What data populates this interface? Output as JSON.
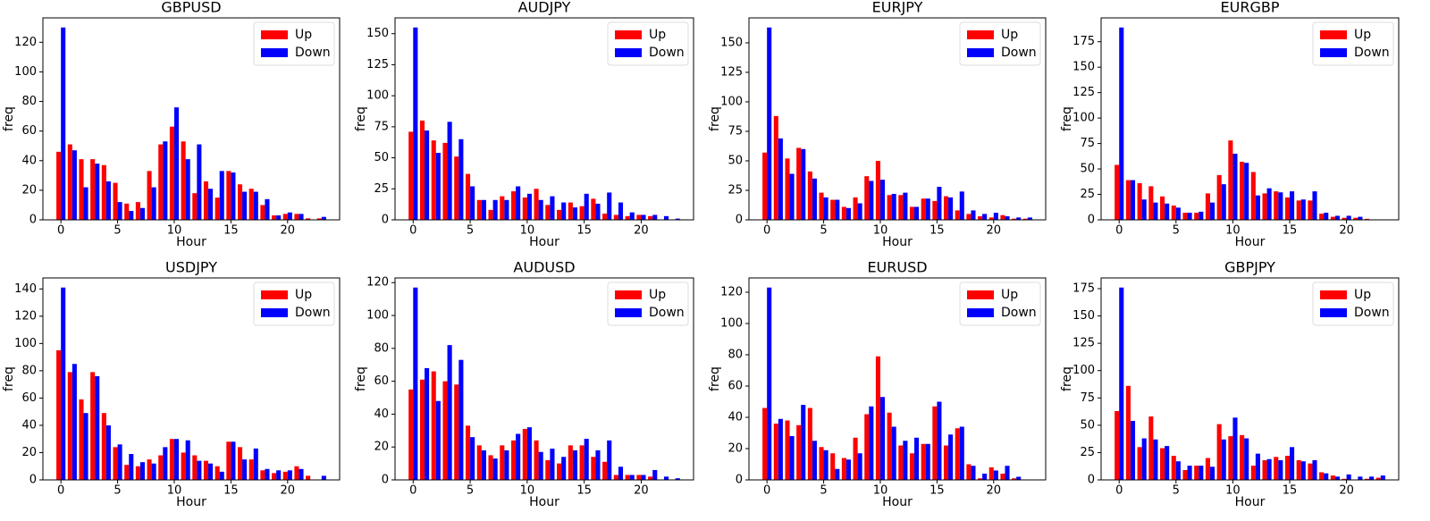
{
  "chart_data": [
    {
      "type": "bar",
      "title": "GBPUSD",
      "xlabel": "Hour",
      "ylabel": "freq",
      "x": [
        0,
        1,
        2,
        3,
        4,
        5,
        6,
        7,
        8,
        9,
        10,
        11,
        12,
        13,
        14,
        15,
        16,
        17,
        18,
        19,
        20,
        21,
        22,
        23
      ],
      "series": [
        {
          "name": "Up",
          "color": "#ff0000",
          "values": [
            46,
            51,
            41,
            41,
            37,
            25,
            11,
            12,
            33,
            51,
            63,
            53,
            18,
            26,
            15,
            33,
            24,
            21,
            10,
            3,
            4,
            4,
            1,
            1
          ]
        },
        {
          "name": "Down",
          "color": "#0000ff",
          "values": [
            130,
            47,
            22,
            38,
            26,
            12,
            6,
            8,
            22,
            53,
            76,
            41,
            51,
            21,
            33,
            32,
            19,
            19,
            14,
            3,
            5,
            4,
            0,
            2
          ]
        }
      ],
      "xlim": [
        -1.59,
        24.59
      ],
      "xticks": [
        0,
        5,
        10,
        15,
        20
      ],
      "ylim": [
        0,
        136.5
      ],
      "yticks": [
        0,
        20,
        40,
        60,
        80,
        100,
        120
      ],
      "legend": "upper right"
    },
    {
      "type": "bar",
      "title": "AUDJPY",
      "xlabel": "Hour",
      "ylabel": "freq",
      "x": [
        0,
        1,
        2,
        3,
        4,
        5,
        6,
        7,
        8,
        9,
        10,
        11,
        12,
        13,
        14,
        15,
        16,
        17,
        18,
        19,
        20,
        21,
        22,
        23
      ],
      "series": [
        {
          "name": "Up",
          "color": "#ff0000",
          "values": [
            71,
            80,
            64,
            62,
            51,
            37,
            16,
            8,
            19,
            23,
            18,
            25,
            12,
            8,
            14,
            11,
            17,
            5,
            4,
            3,
            4,
            3,
            0,
            0
          ]
        },
        {
          "name": "Down",
          "color": "#0000ff",
          "values": [
            155,
            72,
            54,
            79,
            65,
            27,
            16,
            16,
            16,
            27,
            21,
            16,
            19,
            14,
            10,
            21,
            13,
            22,
            14,
            6,
            4,
            4,
            3,
            1
          ]
        }
      ],
      "xlim": [
        -1.59,
        24.59
      ],
      "xticks": [
        0,
        5,
        10,
        15,
        20
      ],
      "ylim": [
        0,
        162.75
      ],
      "yticks": [
        0,
        25,
        50,
        75,
        100,
        125,
        150
      ],
      "legend": "upper right"
    },
    {
      "type": "bar",
      "title": "EURJPY",
      "xlabel": "Hour",
      "ylabel": "freq",
      "x": [
        0,
        1,
        2,
        3,
        4,
        5,
        6,
        7,
        8,
        9,
        10,
        11,
        12,
        13,
        14,
        15,
        16,
        17,
        18,
        19,
        20,
        21,
        22,
        23
      ],
      "series": [
        {
          "name": "Up",
          "color": "#ff0000",
          "values": [
            57,
            88,
            52,
            61,
            41,
            23,
            17,
            11,
            19,
            37,
            50,
            21,
            21,
            11,
            18,
            16,
            20,
            8,
            5,
            3,
            2,
            4,
            1,
            1
          ]
        },
        {
          "name": "Down",
          "color": "#0000ff",
          "values": [
            163,
            69,
            39,
            60,
            35,
            19,
            17,
            10,
            14,
            33,
            34,
            22,
            23,
            11,
            18,
            28,
            19,
            24,
            8,
            5,
            6,
            3,
            2,
            2
          ]
        }
      ],
      "xlim": [
        -1.59,
        24.59
      ],
      "xticks": [
        0,
        5,
        10,
        15,
        20
      ],
      "ylim": [
        0,
        171.15
      ],
      "yticks": [
        0,
        25,
        50,
        75,
        100,
        125,
        150
      ],
      "legend": "upper right"
    },
    {
      "type": "bar",
      "title": "EURGBP",
      "xlabel": "Hour",
      "ylabel": "freq",
      "x": [
        0,
        1,
        2,
        3,
        4,
        5,
        6,
        7,
        8,
        9,
        10,
        11,
        12,
        13,
        14,
        15,
        16,
        17,
        18,
        19,
        20,
        21,
        22,
        23
      ],
      "series": [
        {
          "name": "Up",
          "color": "#ff0000",
          "values": [
            54,
            39,
            36,
            33,
            23,
            14,
            7,
            7,
            26,
            44,
            78,
            57,
            47,
            26,
            28,
            22,
            19,
            19,
            6,
            3,
            2,
            2,
            1,
            0
          ]
        },
        {
          "name": "Down",
          "color": "#0000ff",
          "values": [
            189,
            39,
            20,
            17,
            16,
            12,
            7,
            8,
            17,
            35,
            65,
            56,
            24,
            31,
            27,
            28,
            20,
            28,
            7,
            4,
            4,
            3,
            0,
            0
          ]
        }
      ],
      "xlim": [
        -1.59,
        24.59
      ],
      "xticks": [
        0,
        5,
        10,
        15,
        20
      ],
      "ylim": [
        0,
        198.45
      ],
      "yticks": [
        0,
        25,
        50,
        75,
        100,
        125,
        150,
        175
      ],
      "legend": "upper right"
    },
    {
      "type": "bar",
      "title": "USDJPY",
      "xlabel": "Hour",
      "ylabel": "freq",
      "x": [
        0,
        1,
        2,
        3,
        4,
        5,
        6,
        7,
        8,
        9,
        10,
        11,
        12,
        13,
        14,
        15,
        16,
        17,
        18,
        19,
        20,
        21,
        22,
        23
      ],
      "series": [
        {
          "name": "Up",
          "color": "#ff0000",
          "values": [
            95,
            79,
            59,
            79,
            49,
            24,
            11,
            10,
            15,
            18,
            30,
            20,
            18,
            14,
            10,
            28,
            24,
            15,
            7,
            5,
            6,
            10,
            3,
            0
          ]
        },
        {
          "name": "Down",
          "color": "#0000ff",
          "values": [
            141,
            85,
            49,
            76,
            40,
            26,
            19,
            13,
            12,
            24,
            30,
            29,
            14,
            12,
            6,
            28,
            15,
            23,
            8,
            7,
            7,
            8,
            0,
            3
          ]
        }
      ],
      "xlim": [
        -1.59,
        24.59
      ],
      "xticks": [
        0,
        5,
        10,
        15,
        20
      ],
      "ylim": [
        0,
        148.05
      ],
      "yticks": [
        0,
        20,
        40,
        60,
        80,
        100,
        120,
        140
      ],
      "legend": "upper right"
    },
    {
      "type": "bar",
      "title": "AUDUSD",
      "xlabel": "Hour",
      "ylabel": "freq",
      "x": [
        0,
        1,
        2,
        3,
        4,
        5,
        6,
        7,
        8,
        9,
        10,
        11,
        12,
        13,
        14,
        15,
        16,
        17,
        18,
        19,
        20,
        21,
        22,
        23
      ],
      "series": [
        {
          "name": "Up",
          "color": "#ff0000",
          "values": [
            55,
            61,
            66,
            60,
            58,
            33,
            21,
            15,
            21,
            24,
            31,
            24,
            12,
            10,
            21,
            21,
            14,
            11,
            3,
            3,
            3,
            2,
            0,
            0
          ]
        },
        {
          "name": "Down",
          "color": "#0000ff",
          "values": [
            117,
            68,
            48,
            82,
            73,
            26,
            18,
            13,
            18,
            28,
            32,
            17,
            19,
            14,
            18,
            25,
            18,
            24,
            8,
            3,
            3,
            6,
            2,
            1
          ]
        }
      ],
      "xlim": [
        -1.59,
        24.59
      ],
      "xticks": [
        0,
        5,
        10,
        15,
        20
      ],
      "ylim": [
        0,
        122.85
      ],
      "yticks": [
        0,
        20,
        40,
        60,
        80,
        100,
        120
      ],
      "legend": "upper right"
    },
    {
      "type": "bar",
      "title": "EURUSD",
      "xlabel": "Hour",
      "ylabel": "freq",
      "x": [
        0,
        1,
        2,
        3,
        4,
        5,
        6,
        7,
        8,
        9,
        10,
        11,
        12,
        13,
        14,
        15,
        16,
        17,
        18,
        19,
        20,
        21,
        22,
        23
      ],
      "series": [
        {
          "name": "Up",
          "color": "#ff0000",
          "values": [
            46,
            36,
            38,
            35,
            46,
            21,
            17,
            14,
            27,
            42,
            79,
            43,
            22,
            17,
            23,
            47,
            22,
            33,
            10,
            1,
            8,
            4,
            1,
            0
          ]
        },
        {
          "name": "Down",
          "color": "#0000ff",
          "values": [
            123,
            39,
            28,
            48,
            25,
            19,
            7,
            13,
            17,
            47,
            53,
            34,
            25,
            27,
            23,
            50,
            29,
            34,
            9,
            4,
            6,
            9,
            2,
            0
          ]
        }
      ],
      "xlim": [
        -1.59,
        24.59
      ],
      "xticks": [
        0,
        5,
        10,
        15,
        20
      ],
      "ylim": [
        0,
        129.15
      ],
      "yticks": [
        0,
        20,
        40,
        60,
        80,
        100,
        120
      ],
      "legend": "upper right"
    },
    {
      "type": "bar",
      "title": "GBPJPY",
      "xlabel": "Hour",
      "ylabel": "freq",
      "x": [
        0,
        1,
        2,
        3,
        4,
        5,
        6,
        7,
        8,
        9,
        10,
        11,
        12,
        13,
        14,
        15,
        16,
        17,
        18,
        19,
        20,
        21,
        22,
        23
      ],
      "series": [
        {
          "name": "Up",
          "color": "#ff0000",
          "values": [
            63,
            86,
            30,
            58,
            29,
            22,
            9,
            13,
            20,
            51,
            40,
            41,
            13,
            18,
            21,
            22,
            18,
            15,
            7,
            4,
            1,
            0,
            1,
            2
          ]
        },
        {
          "name": "Down",
          "color": "#0000ff",
          "values": [
            176,
            54,
            38,
            37,
            31,
            17,
            13,
            13,
            12,
            37,
            57,
            38,
            24,
            19,
            18,
            30,
            17,
            18,
            6,
            3,
            5,
            3,
            3,
            4
          ]
        }
      ],
      "xlim": [
        -1.59,
        24.59
      ],
      "xticks": [
        0,
        5,
        10,
        15,
        20
      ],
      "ylim": [
        0,
        184.8
      ],
      "yticks": [
        0,
        25,
        50,
        75,
        100,
        125,
        150,
        175
      ],
      "legend": "upper right"
    }
  ]
}
